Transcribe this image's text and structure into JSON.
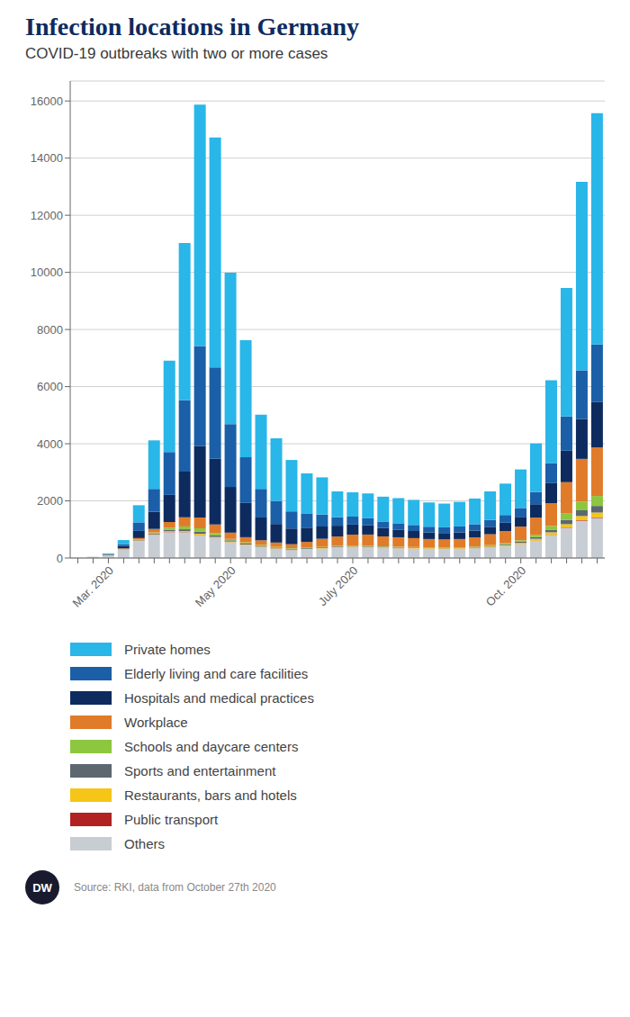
{
  "chart_data": {
    "type": "bar",
    "title": "Infection locations in Germany",
    "subtitle": "COVID-19 outbreaks with two or more cases",
    "annotations": [
      "Source: RKI, data from October 27th 2020",
      "DW"
    ],
    "categories": [
      null,
      null,
      "Mar. 2020",
      null,
      null,
      null,
      null,
      null,
      null,
      null,
      "May 2020",
      null,
      null,
      null,
      null,
      null,
      null,
      null,
      "July 2020",
      null,
      null,
      null,
      null,
      null,
      null,
      null,
      null,
      null,
      null,
      "Oct. 2020",
      null,
      null,
      null,
      null,
      null
    ],
    "series": [
      {
        "name": "Others",
        "color": "#c8cdd4",
        "values": [
          5,
          30,
          100,
          300,
          600,
          800,
          900,
          900,
          800,
          700,
          550,
          450,
          380,
          320,
          280,
          300,
          330,
          370,
          380,
          370,
          350,
          340,
          330,
          320,
          315,
          320,
          340,
          370,
          410,
          480,
          600,
          800,
          1050,
          1300,
          1400
        ]
      },
      {
        "name": "Public transport",
        "color": "#b22222",
        "values": [
          0,
          0,
          1,
          3,
          6,
          8,
          10,
          10,
          10,
          8,
          6,
          5,
          4,
          3,
          3,
          3,
          3,
          3,
          3,
          3,
          3,
          3,
          3,
          3,
          3,
          3,
          3,
          4,
          5,
          6,
          8,
          10,
          15,
          20,
          22
        ]
      },
      {
        "name": "Restaurants, bars and hotels",
        "color": "#f5c518",
        "values": [
          0,
          0,
          2,
          5,
          12,
          20,
          30,
          35,
          40,
          30,
          22,
          18,
          15,
          15,
          14,
          14,
          15,
          16,
          18,
          20,
          20,
          20,
          20,
          20,
          20,
          20,
          22,
          28,
          35,
          45,
          65,
          90,
          120,
          150,
          170
        ]
      },
      {
        "name": "Sports and entertainment",
        "color": "#5c6770",
        "values": [
          0,
          0,
          2,
          5,
          15,
          30,
          50,
          60,
          70,
          55,
          40,
          35,
          30,
          28,
          25,
          25,
          25,
          22,
          20,
          20,
          18,
          18,
          18,
          17,
          17,
          17,
          20,
          25,
          30,
          40,
          60,
          90,
          150,
          200,
          230
        ]
      },
      {
        "name": "Schools and daycare centers",
        "color": "#8dc63f",
        "values": [
          0,
          0,
          2,
          5,
          15,
          40,
          70,
          100,
          120,
          80,
          50,
          40,
          30,
          25,
          20,
          20,
          20,
          20,
          18,
          18,
          16,
          15,
          15,
          15,
          15,
          15,
          18,
          25,
          35,
          50,
          80,
          130,
          220,
          300,
          350
        ]
      },
      {
        "name": "Workplace",
        "color": "#e07b2a",
        "values": [
          0,
          0,
          5,
          20,
          50,
          120,
          200,
          320,
          380,
          300,
          220,
          180,
          160,
          150,
          140,
          200,
          280,
          320,
          380,
          390,
          350,
          330,
          310,
          290,
          280,
          290,
          320,
          380,
          430,
          480,
          600,
          800,
          1100,
          1500,
          1700
        ]
      },
      {
        "name": "Hospitals and medical practices",
        "color": "#0d2b5e",
        "values": [
          0,
          5,
          20,
          80,
          250,
          600,
          950,
          1600,
          2500,
          2300,
          1600,
          1200,
          800,
          650,
          550,
          500,
          430,
          380,
          350,
          320,
          290,
          270,
          250,
          230,
          225,
          230,
          240,
          260,
          290,
          340,
          470,
          700,
          1100,
          1400,
          1600
        ]
      },
      {
        "name": "Elderly living and care facilities",
        "color": "#1a5fa8",
        "values": [
          0,
          0,
          10,
          60,
          300,
          800,
          1500,
          2500,
          3500,
          3200,
          2200,
          1600,
          1000,
          800,
          600,
          500,
          420,
          300,
          280,
          250,
          230,
          220,
          210,
          200,
          200,
          210,
          220,
          240,
          270,
          310,
          430,
          700,
          1200,
          1700,
          2000
        ]
      },
      {
        "name": "Private homes",
        "color": "#29b6e8",
        "values": [
          0,
          0,
          20,
          150,
          600,
          1700,
          3200,
          5500,
          8450,
          8050,
          5300,
          4100,
          2600,
          2200,
          1800,
          1400,
          1300,
          900,
          850,
          870,
          870,
          880,
          880,
          850,
          830,
          860,
          900,
          1000,
          1100,
          1350,
          1700,
          2900,
          4500,
          6600,
          8100
        ]
      }
    ],
    "ylim": [
      0,
      16700
    ],
    "yticks": [
      0,
      2000,
      4000,
      6000,
      8000,
      10000,
      12000,
      14000,
      16000
    ],
    "grid": true,
    "stacked": true,
    "legend": "bottom"
  }
}
